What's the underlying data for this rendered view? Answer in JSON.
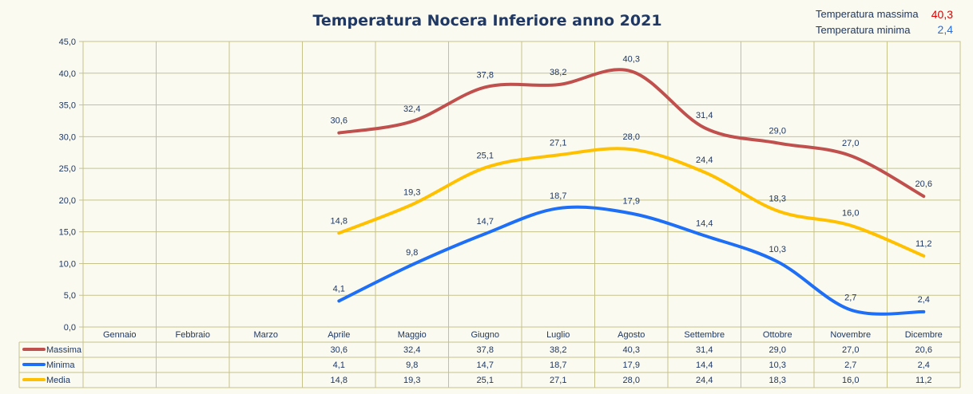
{
  "chart_data": {
    "type": "line",
    "title": "Temperatura Nocera Inferiore anno 2021",
    "categories": [
      "Gennaio",
      "Febbraio",
      "Marzo",
      "Aprile",
      "Maggio",
      "Giugno",
      "Luglio",
      "Agosto",
      "Settembre",
      "Ottobre",
      "Novembre",
      "Dicembre"
    ],
    "ylim": [
      0,
      45
    ],
    "yticks": [
      "0,0",
      "5,0",
      "10,0",
      "15,0",
      "20,0",
      "25,0",
      "30,0",
      "35,0",
      "40,0",
      "45,0"
    ],
    "grid": true,
    "legend": "data-table-below",
    "series": [
      {
        "name": "Massima",
        "color": "#c0504d",
        "values": [
          null,
          null,
          null,
          30.6,
          32.4,
          37.8,
          38.2,
          40.3,
          31.4,
          29.0,
          27.0,
          20.6
        ],
        "labels": [
          "",
          "",
          "",
          "30,6",
          "32,4",
          "37,8",
          "38,2",
          "40,3",
          "31,4",
          "29,0",
          "27,0",
          "20,6"
        ]
      },
      {
        "name": "Minima",
        "color": "#1e6ff5",
        "values": [
          null,
          null,
          null,
          4.1,
          9.8,
          14.7,
          18.7,
          17.9,
          14.4,
          10.3,
          2.7,
          2.4
        ],
        "labels": [
          "",
          "",
          "",
          "4,1",
          "9,8",
          "14,7",
          "18,7",
          "17,9",
          "14,4",
          "10,3",
          "2,7",
          "2,4"
        ]
      },
      {
        "name": "Media",
        "color": "#ffc000",
        "values": [
          null,
          null,
          null,
          14.8,
          19.3,
          25.1,
          27.1,
          28.0,
          24.4,
          18.3,
          16.0,
          11.2
        ],
        "labels": [
          "",
          "",
          "",
          "14,8",
          "19,3",
          "25,1",
          "27,1",
          "28,0",
          "24,4",
          "18,3",
          "16,0",
          "11,2"
        ]
      }
    ]
  },
  "info": {
    "max_label": "Temperatura massima",
    "max_value": "40,3",
    "max_color": "#e00000",
    "min_label": "Temperatura minima",
    "min_value": "2,4",
    "min_color": "#1e6ff5"
  }
}
